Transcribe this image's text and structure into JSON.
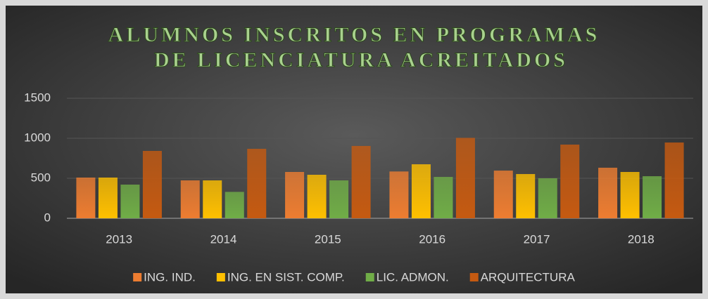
{
  "chart_data": {
    "type": "bar",
    "title": [
      "ALUMNOS INSCRITOS EN PROGRAMAS",
      "DE LICENCIATURA ACREITADOS"
    ],
    "categories": [
      "2013",
      "2014",
      "2015",
      "2016",
      "2017",
      "2018"
    ],
    "series": [
      {
        "name": "ING. IND.",
        "color": "#ed7d31",
        "values": [
          509,
          474,
          579,
          585,
          596,
          632
        ]
      },
      {
        "name": "ING. EN SIST. COMP.",
        "color": "#ffc000",
        "values": [
          509,
          474,
          544,
          675,
          553,
          579
        ]
      },
      {
        "name": "LIC. ADMON.",
        "color": "#70ad47",
        "values": [
          421,
          330,
          474,
          517,
          500,
          526
        ]
      },
      {
        "name": "ARQUITECTURA",
        "color": "#c55a11",
        "values": [
          842,
          868,
          904,
          1005,
          921,
          947
        ]
      }
    ],
    "ylim": [
      0,
      1500
    ],
    "yticks": [
      0,
      500,
      1000,
      1500
    ],
    "grid": true,
    "legend": "bottom"
  }
}
